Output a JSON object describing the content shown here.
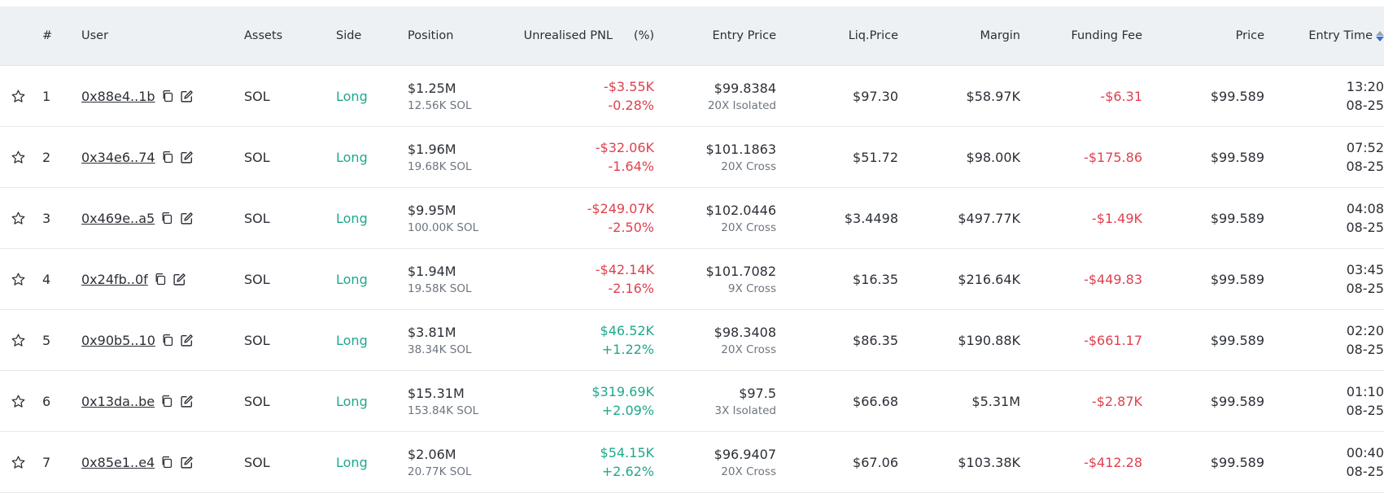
{
  "colors": {
    "positive": "#1fa88d",
    "negative": "#e0404f",
    "header_bg": "#eef1f4"
  },
  "headers": {
    "num": "#",
    "user": "User",
    "assets": "Assets",
    "side": "Side",
    "position": "Position",
    "pnl": "Unrealised PNL",
    "pnl_pct": "(%)",
    "entry_price": "Entry Price",
    "liq_price": "Liq.Price",
    "margin": "Margin",
    "funding_fee": "Funding Fee",
    "price": "Price",
    "entry_time": "Entry Time"
  },
  "rows": [
    {
      "num": "1",
      "user": "0x88e4..1b",
      "asset": "SOL",
      "side": "Long",
      "position": "$1.25M",
      "position_qty": "12.56K SOL",
      "pnl": "-$3.55K",
      "pnl_pct": "-0.28%",
      "pnl_sign": "neg",
      "entry_price": "$99.8384",
      "leverage": "20X Isolated",
      "liq_price": "$97.30",
      "margin": "$58.97K",
      "funding_fee": "-$6.31",
      "price": "$99.589",
      "time": "13:20",
      "date": "08-25"
    },
    {
      "num": "2",
      "user": "0x34e6..74",
      "asset": "SOL",
      "side": "Long",
      "position": "$1.96M",
      "position_qty": "19.68K SOL",
      "pnl": "-$32.06K",
      "pnl_pct": "-1.64%",
      "pnl_sign": "neg",
      "entry_price": "$101.1863",
      "leverage": "20X Cross",
      "liq_price": "$51.72",
      "margin": "$98.00K",
      "funding_fee": "-$175.86",
      "price": "$99.589",
      "time": "07:52",
      "date": "08-25"
    },
    {
      "num": "3",
      "user": "0x469e..a5",
      "asset": "SOL",
      "side": "Long",
      "position": "$9.95M",
      "position_qty": "100.00K SOL",
      "pnl": "-$249.07K",
      "pnl_pct": "-2.50%",
      "pnl_sign": "neg",
      "entry_price": "$102.0446",
      "leverage": "20X Cross",
      "liq_price": "$3.4498",
      "margin": "$497.77K",
      "funding_fee": "-$1.49K",
      "price": "$99.589",
      "time": "04:08",
      "date": "08-25"
    },
    {
      "num": "4",
      "user": "0x24fb..0f",
      "asset": "SOL",
      "side": "Long",
      "position": "$1.94M",
      "position_qty": "19.58K SOL",
      "pnl": "-$42.14K",
      "pnl_pct": "-2.16%",
      "pnl_sign": "neg",
      "entry_price": "$101.7082",
      "leverage": "9X Cross",
      "liq_price": "$16.35",
      "margin": "$216.64K",
      "funding_fee": "-$449.83",
      "price": "$99.589",
      "time": "03:45",
      "date": "08-25"
    },
    {
      "num": "5",
      "user": "0x90b5..10",
      "asset": "SOL",
      "side": "Long",
      "position": "$3.81M",
      "position_qty": "38.34K SOL",
      "pnl": "$46.52K",
      "pnl_pct": "+1.22%",
      "pnl_sign": "pos",
      "entry_price": "$98.3408",
      "leverage": "20X Cross",
      "liq_price": "$86.35",
      "margin": "$190.88K",
      "funding_fee": "-$661.17",
      "price": "$99.589",
      "time": "02:20",
      "date": "08-25"
    },
    {
      "num": "6",
      "user": "0x13da..be",
      "asset": "SOL",
      "side": "Long",
      "position": "$15.31M",
      "position_qty": "153.84K SOL",
      "pnl": "$319.69K",
      "pnl_pct": "+2.09%",
      "pnl_sign": "pos",
      "entry_price": "$97.5",
      "leverage": "3X Isolated",
      "liq_price": "$66.68",
      "margin": "$5.31M",
      "funding_fee": "-$2.87K",
      "price": "$99.589",
      "time": "01:10",
      "date": "08-25"
    },
    {
      "num": "7",
      "user": "0x85e1..e4",
      "asset": "SOL",
      "side": "Long",
      "position": "$2.06M",
      "position_qty": "20.77K SOL",
      "pnl": "$54.15K",
      "pnl_pct": "+2.62%",
      "pnl_sign": "pos",
      "entry_price": "$96.9407",
      "leverage": "20X Cross",
      "liq_price": "$67.06",
      "margin": "$103.38K",
      "funding_fee": "-$412.28",
      "price": "$99.589",
      "time": "00:40",
      "date": "08-25"
    }
  ]
}
